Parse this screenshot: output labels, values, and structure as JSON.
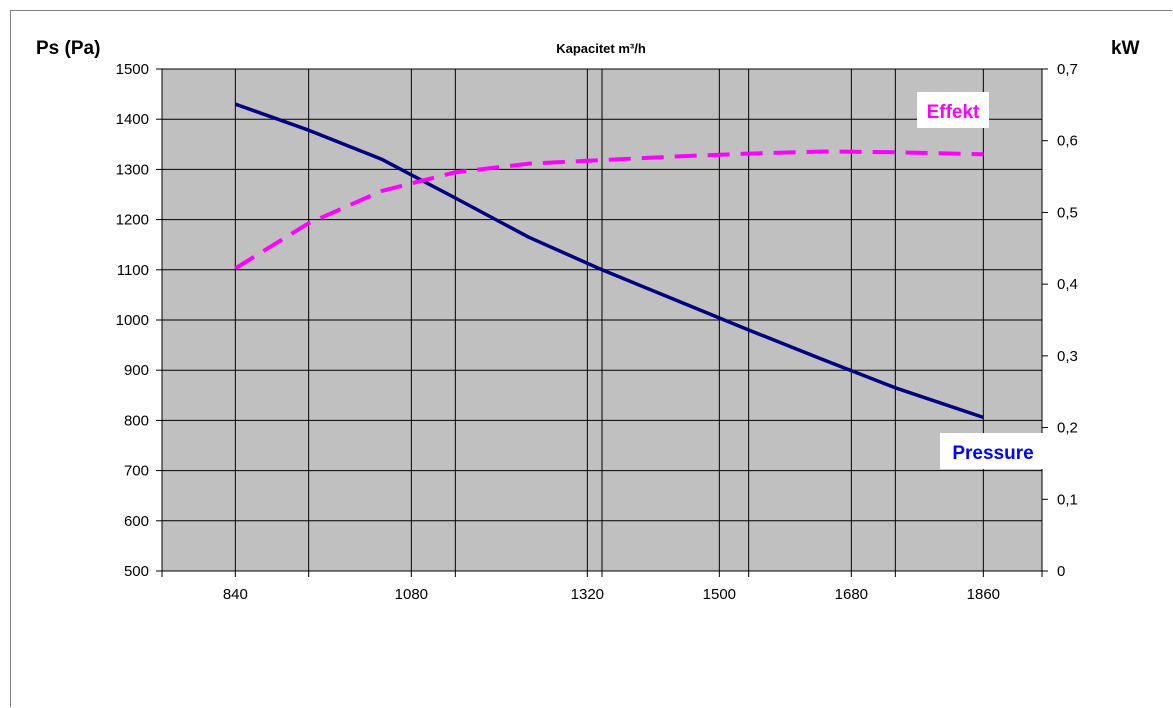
{
  "chart_data": {
    "type": "line",
    "title": "Kapacitet m³/h",
    "ylabel": "Ps (Pa)",
    "y2label": "kW",
    "xlim": [
      740,
      1940
    ],
    "ylim": [
      500,
      1500
    ],
    "y2lim": [
      0,
      0.7
    ],
    "grid": true,
    "background": "#c0c0c0",
    "x_ticks": [
      {
        "value": 840,
        "label": "840"
      },
      {
        "value": 1080,
        "label": "1080"
      },
      {
        "value": 1320,
        "label": "1320"
      },
      {
        "value": 1500,
        "label": "1500"
      },
      {
        "value": 1680,
        "label": "1680"
      },
      {
        "value": 1860,
        "label": "1860"
      }
    ],
    "x_minor_ticks": [
      940,
      1140,
      1340,
      1540,
      1740
    ],
    "y_ticks": [
      500,
      600,
      700,
      800,
      900,
      1000,
      1100,
      1200,
      1300,
      1400,
      1500
    ],
    "y2_ticks": [
      {
        "value": 0,
        "label": "0"
      },
      {
        "value": 0.1,
        "label": "0,1"
      },
      {
        "value": 0.2,
        "label": "0,2"
      },
      {
        "value": 0.3,
        "label": "0,3"
      },
      {
        "value": 0.4,
        "label": "0,4"
      },
      {
        "value": 0.5,
        "label": "0,5"
      },
      {
        "value": 0.6,
        "label": "0,6"
      },
      {
        "value": 0.7,
        "label": "0,7"
      }
    ],
    "series": [
      {
        "name": "Pressure",
        "axis": "left",
        "color": "#000080",
        "dash": "solid",
        "label_color": "#0000ff",
        "x": [
          840,
          940,
          1040,
          1140,
          1240,
          1340,
          1440,
          1540,
          1640,
          1740,
          1860
        ],
        "y": [
          1430,
          1378,
          1320,
          1243,
          1165,
          1100,
          1040,
          980,
          922,
          865,
          806
        ]
      },
      {
        "name": "Effekt",
        "axis": "right",
        "color": "#ff00ff",
        "dash": "dashed",
        "label_color": "#ff00ff",
        "x": [
          840,
          940,
          1040,
          1140,
          1240,
          1340,
          1440,
          1540,
          1640,
          1740,
          1860
        ],
        "y": [
          0.422,
          0.485,
          0.53,
          0.556,
          0.568,
          0.573,
          0.578,
          0.582,
          0.585,
          0.584,
          0.581
        ]
      }
    ]
  }
}
